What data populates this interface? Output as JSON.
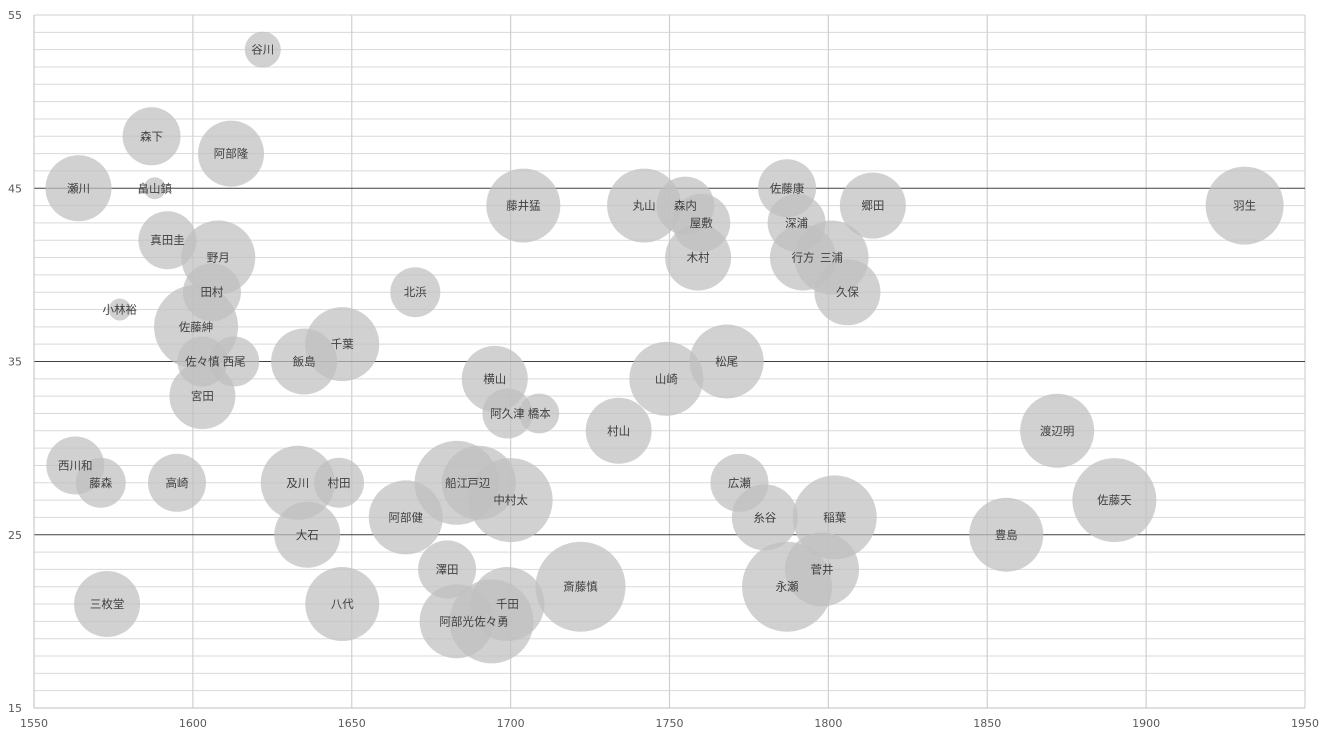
{
  "chart_data": {
    "type": "bubble",
    "title": "",
    "xlabel": "",
    "ylabel": "",
    "xlim": [
      1550,
      1950
    ],
    "ylim": [
      15,
      55
    ],
    "x_ticks": [
      1550,
      1600,
      1650,
      1700,
      1750,
      1800,
      1850,
      1900,
      1950
    ],
    "y_ticks": [
      15,
      25,
      35,
      45,
      55
    ],
    "grid": {
      "x_major": true,
      "y_major": true,
      "y_minor": true
    },
    "colors": {
      "bubble_fill": "#bfbfbf",
      "bubble_opacity": 0.72,
      "major_grid": "#404040",
      "minor_grid": "#d9d9d9",
      "x_grid": "#d0d0d0",
      "label": "#404040"
    },
    "points": [
      {
        "label": "谷川",
        "x": 1622,
        "y": 53,
        "size": 36
      },
      {
        "label": "森下",
        "x": 1587,
        "y": 48,
        "size": 58
      },
      {
        "label": "阿部隆",
        "x": 1612,
        "y": 47,
        "size": 66
      },
      {
        "label": "瀬川",
        "x": 1564,
        "y": 45,
        "size": 66
      },
      {
        "label": "畠山鎮",
        "x": 1588,
        "y": 45,
        "size": 22
      },
      {
        "label": "真田圭",
        "x": 1592,
        "y": 42,
        "size": 58
      },
      {
        "label": "野月",
        "x": 1608,
        "y": 41,
        "size": 74
      },
      {
        "label": "田村",
        "x": 1606,
        "y": 39,
        "size": 58
      },
      {
        "label": "小林裕",
        "x": 1577,
        "y": 38,
        "size": 22
      },
      {
        "label": "佐藤紳",
        "x": 1601,
        "y": 37,
        "size": 84
      },
      {
        "label": "佐々慎",
        "x": 1603,
        "y": 35,
        "size": 50
      },
      {
        "label": "西尾",
        "x": 1613,
        "y": 35,
        "size": 50
      },
      {
        "label": "宮田",
        "x": 1603,
        "y": 33,
        "size": 66
      },
      {
        "label": "飯島",
        "x": 1635,
        "y": 35,
        "size": 66
      },
      {
        "label": "千葉",
        "x": 1647,
        "y": 36,
        "size": 74
      },
      {
        "label": "北浜",
        "x": 1670,
        "y": 39,
        "size": 50
      },
      {
        "label": "西川和",
        "x": 1563,
        "y": 29,
        "size": 58
      },
      {
        "label": "藤森",
        "x": 1571,
        "y": 28,
        "size": 50
      },
      {
        "label": "高崎",
        "x": 1595,
        "y": 28,
        "size": 58
      },
      {
        "label": "及川",
        "x": 1633,
        "y": 28,
        "size": 74
      },
      {
        "label": "村田",
        "x": 1646,
        "y": 28,
        "size": 50
      },
      {
        "label": "大石",
        "x": 1636,
        "y": 25,
        "size": 66
      },
      {
        "label": "三枚堂",
        "x": 1573,
        "y": 21,
        "size": 66
      },
      {
        "label": "八代",
        "x": 1647,
        "y": 21,
        "size": 74
      },
      {
        "label": "阿部健",
        "x": 1667,
        "y": 26,
        "size": 74
      },
      {
        "label": "澤田",
        "x": 1680,
        "y": 23,
        "size": 58
      },
      {
        "label": "船江",
        "x": 1683,
        "y": 28,
        "size": 84
      },
      {
        "label": "戸辺",
        "x": 1690,
        "y": 28,
        "size": 74
      },
      {
        "label": "中村太",
        "x": 1700,
        "y": 27,
        "size": 84
      },
      {
        "label": "横山",
        "x": 1695,
        "y": 34,
        "size": 66
      },
      {
        "label": "阿久津",
        "x": 1699,
        "y": 32,
        "size": 50
      },
      {
        "label": "橋本",
        "x": 1709,
        "y": 32,
        "size": 40
      },
      {
        "label": "藤井猛",
        "x": 1704,
        "y": 44,
        "size": 74
      },
      {
        "label": "阿部光",
        "x": 1683,
        "y": 20,
        "size": 74
      },
      {
        "label": "千田",
        "x": 1699,
        "y": 21,
        "size": 74
      },
      {
        "label": "佐々勇",
        "x": 1694,
        "y": 20,
        "size": 84
      },
      {
        "label": "斎藤慎",
        "x": 1722,
        "y": 22,
        "size": 90
      },
      {
        "label": "村山",
        "x": 1734,
        "y": 31,
        "size": 66
      },
      {
        "label": "山崎",
        "x": 1749,
        "y": 34,
        "size": 74
      },
      {
        "label": "松尾",
        "x": 1768,
        "y": 35,
        "size": 74
      },
      {
        "label": "丸山",
        "x": 1742,
        "y": 44,
        "size": 74
      },
      {
        "label": "森内",
        "x": 1755,
        "y": 44,
        "size": 58
      },
      {
        "label": "屋敷",
        "x": 1760,
        "y": 43,
        "size": 58
      },
      {
        "label": "木村",
        "x": 1759,
        "y": 41,
        "size": 66
      },
      {
        "label": "佐藤康",
        "x": 1787,
        "y": 45,
        "size": 58
      },
      {
        "label": "深浦",
        "x": 1790,
        "y": 43,
        "size": 58
      },
      {
        "label": "行方",
        "x": 1792,
        "y": 41,
        "size": 66
      },
      {
        "label": "三浦",
        "x": 1801,
        "y": 41,
        "size": 74
      },
      {
        "label": "久保",
        "x": 1806,
        "y": 39,
        "size": 66
      },
      {
        "label": "郷田",
        "x": 1814,
        "y": 44,
        "size": 66
      },
      {
        "label": "広瀬",
        "x": 1772,
        "y": 28,
        "size": 58
      },
      {
        "label": "糸谷",
        "x": 1780,
        "y": 26,
        "size": 66
      },
      {
        "label": "稲葉",
        "x": 1802,
        "y": 26,
        "size": 84
      },
      {
        "label": "永瀬",
        "x": 1787,
        "y": 22,
        "size": 90
      },
      {
        "label": "菅井",
        "x": 1798,
        "y": 23,
        "size": 74
      },
      {
        "label": "豊島",
        "x": 1856,
        "y": 25,
        "size": 74
      },
      {
        "label": "渡辺明",
        "x": 1872,
        "y": 31,
        "size": 74
      },
      {
        "label": "佐藤天",
        "x": 1890,
        "y": 27,
        "size": 84
      },
      {
        "label": "羽生",
        "x": 1931,
        "y": 44,
        "size": 78
      }
    ]
  }
}
